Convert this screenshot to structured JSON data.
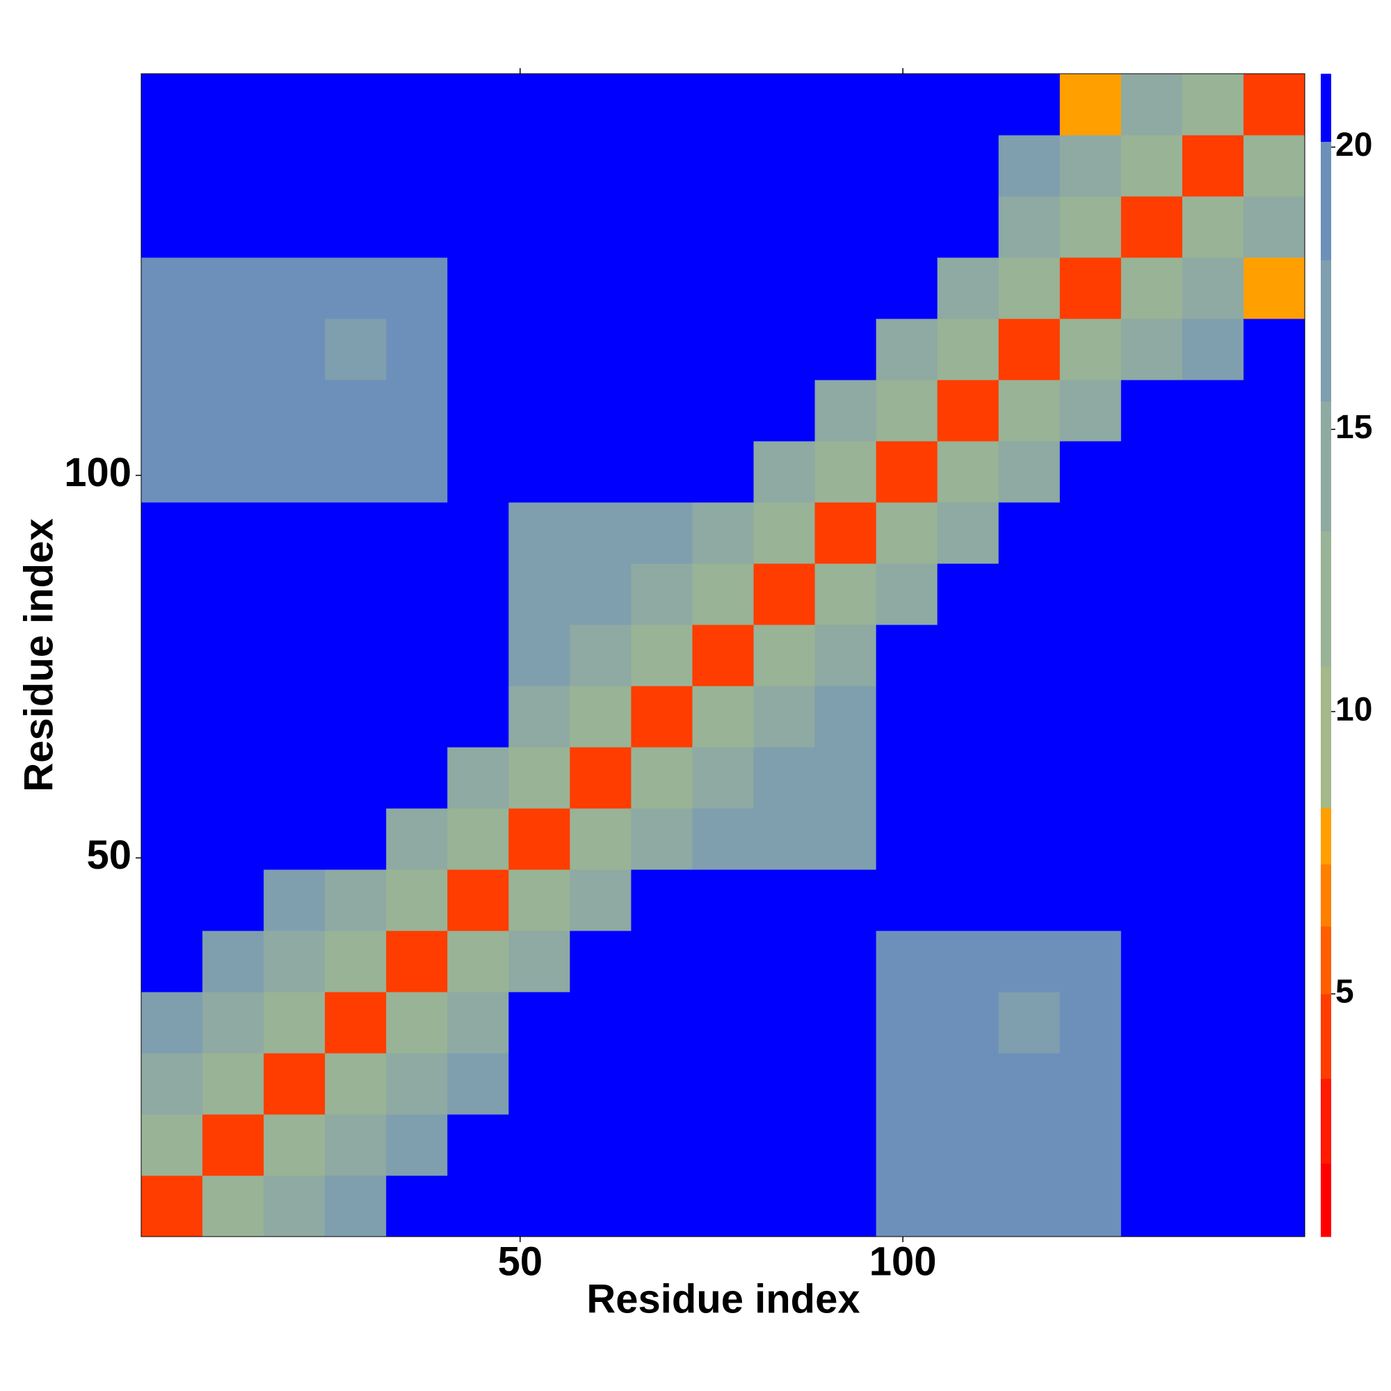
{
  "chart_data": {
    "type": "heatmap",
    "xlabel": "Residue index",
    "ylabel": "Residue index",
    "xlim": [
      0.5,
      152.5
    ],
    "ylim": [
      0.5,
      152.5
    ],
    "xticks": [
      50,
      100
    ],
    "yticks": [
      50,
      100
    ],
    "bins": [
      0.5,
      8.5,
      16.5,
      24.5,
      32.5,
      40.5,
      48.5,
      56.5,
      64.5,
      72.5,
      80.5,
      88.5,
      96.5,
      104.5,
      112.5,
      120.5,
      128.5,
      136.5,
      144.5,
      152.5
    ],
    "z": [
      [
        4,
        11,
        15,
        17,
        21,
        21,
        21,
        21,
        21,
        21,
        21,
        21,
        18,
        18,
        18,
        18,
        21,
        21,
        21
      ],
      [
        11,
        4,
        11,
        15,
        17,
        21,
        21,
        21,
        21,
        21,
        21,
        21,
        18,
        18,
        18,
        18,
        21,
        21,
        21
      ],
      [
        15,
        11,
        4,
        11,
        15,
        17,
        21,
        21,
        21,
        21,
        21,
        21,
        18,
        18,
        18,
        18,
        21,
        21,
        21
      ],
      [
        17,
        15,
        11,
        4,
        11,
        15,
        21,
        21,
        21,
        21,
        21,
        21,
        18,
        18,
        16,
        18,
        21,
        21,
        21
      ],
      [
        21,
        17,
        15,
        11,
        4,
        11,
        15,
        21,
        21,
        21,
        21,
        21,
        18,
        18,
        18,
        18,
        21,
        21,
        21
      ],
      [
        21,
        21,
        17,
        15,
        11,
        4,
        11,
        15,
        21,
        21,
        21,
        21,
        21,
        21,
        21,
        21,
        21,
        21,
        21
      ],
      [
        21,
        21,
        21,
        21,
        15,
        11,
        4,
        11,
        15,
        17,
        17,
        17,
        21,
        21,
        21,
        21,
        21,
        21,
        21
      ],
      [
        21,
        21,
        21,
        21,
        21,
        15,
        11,
        4,
        11,
        15,
        17,
        17,
        21,
        21,
        21,
        21,
        21,
        21,
        21
      ],
      [
        21,
        21,
        21,
        21,
        21,
        21,
        15,
        11,
        4,
        11,
        15,
        17,
        21,
        21,
        21,
        21,
        21,
        21,
        21
      ],
      [
        21,
        21,
        21,
        21,
        21,
        21,
        17,
        15,
        11,
        4,
        11,
        15,
        21,
        21,
        21,
        21,
        21,
        21,
        21
      ],
      [
        21,
        21,
        21,
        21,
        21,
        21,
        17,
        17,
        15,
        11,
        4,
        11,
        15,
        21,
        21,
        21,
        21,
        21,
        21
      ],
      [
        21,
        21,
        21,
        21,
        21,
        21,
        17,
        17,
        17,
        15,
        11,
        4,
        11,
        15,
        21,
        21,
        21,
        21,
        21
      ],
      [
        18,
        18,
        18,
        18,
        18,
        21,
        21,
        21,
        21,
        21,
        15,
        11,
        4,
        11,
        15,
        21,
        21,
        21,
        21
      ],
      [
        18,
        18,
        18,
        18,
        18,
        21,
        21,
        21,
        21,
        21,
        21,
        15,
        11,
        4,
        11,
        15,
        21,
        21,
        21
      ],
      [
        18,
        18,
        18,
        16,
        18,
        21,
        21,
        21,
        21,
        21,
        21,
        21,
        15,
        11,
        4,
        11,
        15,
        17,
        21
      ],
      [
        18,
        18,
        18,
        18,
        18,
        21,
        21,
        21,
        21,
        21,
        21,
        21,
        21,
        15,
        11,
        4,
        11,
        15,
        8
      ],
      [
        21,
        21,
        21,
        21,
        21,
        21,
        21,
        21,
        21,
        21,
        21,
        21,
        21,
        21,
        15,
        11,
        4,
        11,
        15
      ],
      [
        21,
        21,
        21,
        21,
        21,
        21,
        21,
        21,
        21,
        21,
        21,
        21,
        21,
        21,
        17,
        15,
        11,
        4,
        11
      ],
      [
        21,
        21,
        21,
        21,
        21,
        21,
        21,
        21,
        21,
        21,
        21,
        21,
        21,
        21,
        21,
        8,
        15,
        11,
        4
      ]
    ],
    "levels": [
      0.7,
      2,
      3.5,
      5,
      6.2,
      7.3,
      8.3,
      10.8,
      13.2,
      15.5,
      18,
      20.1,
      21.3
    ],
    "level_colors": [
      "#ff0000",
      "#ff1a00",
      "#ff3d00",
      "#ff5e00",
      "#ff7f00",
      "#ffa000",
      "#a4b88a",
      "#99b396",
      "#8eaaa2",
      "#7f9fae",
      "#6d90bb",
      "#0000ff"
    ],
    "cticks": [
      5,
      10,
      15,
      20
    ]
  }
}
